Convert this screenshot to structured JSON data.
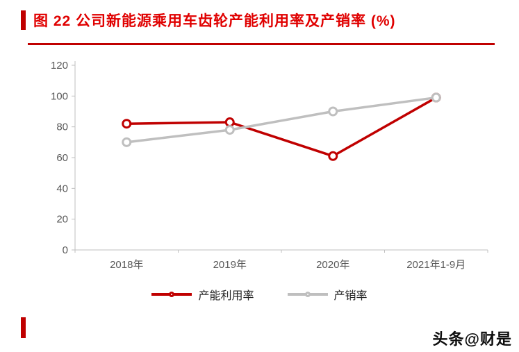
{
  "page": {
    "title": "图 22  公司新能源乘用车齿轮产能利用率及产销率 (%)",
    "title_color": "#e00000",
    "accent_color": "#c00000",
    "watermark": "头条@财是"
  },
  "chart_data": {
    "type": "line",
    "title": "公司新能源乘用车齿轮产能利用率及产销率 (%)",
    "categories": [
      "2018年",
      "2019年",
      "2020年",
      "2021年1-9月"
    ],
    "series": [
      {
        "name": "产能利用率",
        "color": "#c00000",
        "values": [
          82,
          83,
          61,
          99
        ]
      },
      {
        "name": "产销率",
        "color": "#bfbfbf",
        "values": [
          70,
          78,
          90,
          99
        ]
      }
    ],
    "xlabel": "",
    "ylabel": "",
    "ylim": [
      0,
      120
    ],
    "yticks": [
      0,
      20,
      40,
      60,
      80,
      100,
      120
    ],
    "grid": false,
    "legend_position": "bottom",
    "axis_color": "#bfbfbf",
    "tick_label_color": "#595959"
  }
}
